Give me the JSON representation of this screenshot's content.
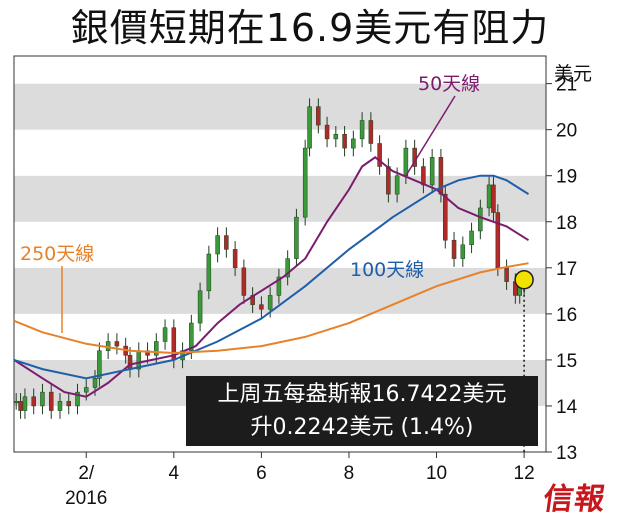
{
  "title": "銀價短期在16.9美元有阻力",
  "logo": "信報",
  "callout": {
    "line1": "上周五每盎斯報16.7422美元",
    "line2": "升0.2242美元 (1.4%)"
  },
  "chart_data": {
    "type": "line",
    "title": "銀價短期在16.9美元有阻力",
    "ylabel": "美元",
    "ylim": [
      13,
      21.6
    ],
    "yticks": [
      13,
      14,
      15,
      16,
      17,
      18,
      19,
      20,
      21
    ],
    "xlim": [
      0.35,
      12.5
    ],
    "xticks": [
      {
        "value": 2,
        "label": "2/",
        "sublabel": "2016"
      },
      {
        "value": 4,
        "label": "4"
      },
      {
        "value": 6,
        "label": "6"
      },
      {
        "value": 8,
        "label": "8"
      },
      {
        "value": 10,
        "label": "10"
      },
      {
        "value": 12,
        "label": "12"
      }
    ],
    "grid_bands": "alternating horizontal grey bands",
    "price_candles_close": [
      [
        0.4,
        14.1
      ],
      [
        0.5,
        13.9
      ],
      [
        0.6,
        14.2
      ],
      [
        0.8,
        14.0
      ],
      [
        1.0,
        14.3
      ],
      [
        1.2,
        13.9
      ],
      [
        1.4,
        14.1
      ],
      [
        1.6,
        14.0
      ],
      [
        1.8,
        14.3
      ],
      [
        2.0,
        14.4
      ],
      [
        2.2,
        14.6
      ],
      [
        2.3,
        15.2
      ],
      [
        2.5,
        15.4
      ],
      [
        2.7,
        15.3
      ],
      [
        2.9,
        15.1
      ],
      [
        3.0,
        14.8
      ],
      [
        3.2,
        15.2
      ],
      [
        3.4,
        15.1
      ],
      [
        3.6,
        15.4
      ],
      [
        3.8,
        15.7
      ],
      [
        4.0,
        15.0
      ],
      [
        4.2,
        15.2
      ],
      [
        4.4,
        15.8
      ],
      [
        4.6,
        16.5
      ],
      [
        4.8,
        17.3
      ],
      [
        5.0,
        17.7
      ],
      [
        5.2,
        17.4
      ],
      [
        5.4,
        17.0
      ],
      [
        5.6,
        16.4
      ],
      [
        5.8,
        16.2
      ],
      [
        6.0,
        16.1
      ],
      [
        6.2,
        16.4
      ],
      [
        6.4,
        16.8
      ],
      [
        6.6,
        17.2
      ],
      [
        6.8,
        18.1
      ],
      [
        7.0,
        19.6
      ],
      [
        7.1,
        20.5
      ],
      [
        7.3,
        20.1
      ],
      [
        7.5,
        19.8
      ],
      [
        7.7,
        19.9
      ],
      [
        7.9,
        19.6
      ],
      [
        8.1,
        19.8
      ],
      [
        8.3,
        20.2
      ],
      [
        8.5,
        19.7
      ],
      [
        8.7,
        19.2
      ],
      [
        8.9,
        18.6
      ],
      [
        9.1,
        19.0
      ],
      [
        9.3,
        19.6
      ],
      [
        9.5,
        19.2
      ],
      [
        9.7,
        18.8
      ],
      [
        9.9,
        19.4
      ],
      [
        10.1,
        18.6
      ],
      [
        10.2,
        17.6
      ],
      [
        10.4,
        17.2
      ],
      [
        10.6,
        17.5
      ],
      [
        10.8,
        17.8
      ],
      [
        11.0,
        18.3
      ],
      [
        11.2,
        18.8
      ],
      [
        11.3,
        18.2
      ],
      [
        11.4,
        17.0
      ],
      [
        11.6,
        16.7
      ],
      [
        11.8,
        16.4
      ],
      [
        11.9,
        16.6
      ],
      [
        12.0,
        16.74
      ]
    ],
    "series": [
      {
        "name": "50天線",
        "color": "#7b1c6e",
        "x": [
          0.35,
          1.0,
          1.5,
          2.0,
          2.5,
          3.0,
          3.5,
          4.0,
          4.5,
          5.0,
          5.5,
          6.0,
          6.5,
          7.0,
          7.5,
          8.0,
          8.3,
          8.6,
          9.0,
          9.5,
          10.0,
          10.5,
          11.0,
          11.3,
          11.6,
          12.1
        ],
        "y": [
          15.0,
          14.6,
          14.3,
          14.2,
          14.5,
          14.9,
          15.0,
          15.1,
          15.3,
          15.8,
          16.2,
          16.5,
          16.8,
          17.2,
          18.0,
          18.7,
          19.2,
          19.4,
          19.1,
          18.9,
          18.7,
          18.3,
          18.1,
          18.0,
          17.9,
          17.6
        ]
      },
      {
        "name": "100天線",
        "color": "#1f5ea8",
        "x": [
          0.35,
          1.0,
          2.0,
          3.0,
          4.0,
          5.0,
          6.0,
          7.0,
          8.0,
          9.0,
          10.0,
          10.5,
          11.0,
          11.3,
          11.6,
          12.1
        ],
        "y": [
          15.0,
          14.8,
          14.6,
          14.8,
          15.0,
          15.4,
          15.9,
          16.6,
          17.4,
          18.1,
          18.7,
          18.9,
          19.0,
          19.0,
          18.9,
          18.6
        ]
      },
      {
        "name": "250天線",
        "color": "#e8822a",
        "x": [
          0.35,
          1.0,
          2.0,
          3.0,
          4.0,
          5.0,
          6.0,
          7.0,
          8.0,
          9.0,
          10.0,
          11.0,
          11.5,
          12.1
        ],
        "y": [
          15.85,
          15.6,
          15.35,
          15.2,
          15.15,
          15.2,
          15.3,
          15.5,
          15.8,
          16.2,
          16.6,
          16.9,
          17.0,
          17.1
        ]
      }
    ],
    "annotations": [
      {
        "text": "50天線",
        "color": "#7b1c6e"
      },
      {
        "text": "100天線",
        "color": "#1f5ea8"
      },
      {
        "text": "250天線",
        "color": "#e8822a"
      }
    ],
    "marker": {
      "x": 12.0,
      "y": 16.74,
      "color": "#f2e200"
    }
  }
}
